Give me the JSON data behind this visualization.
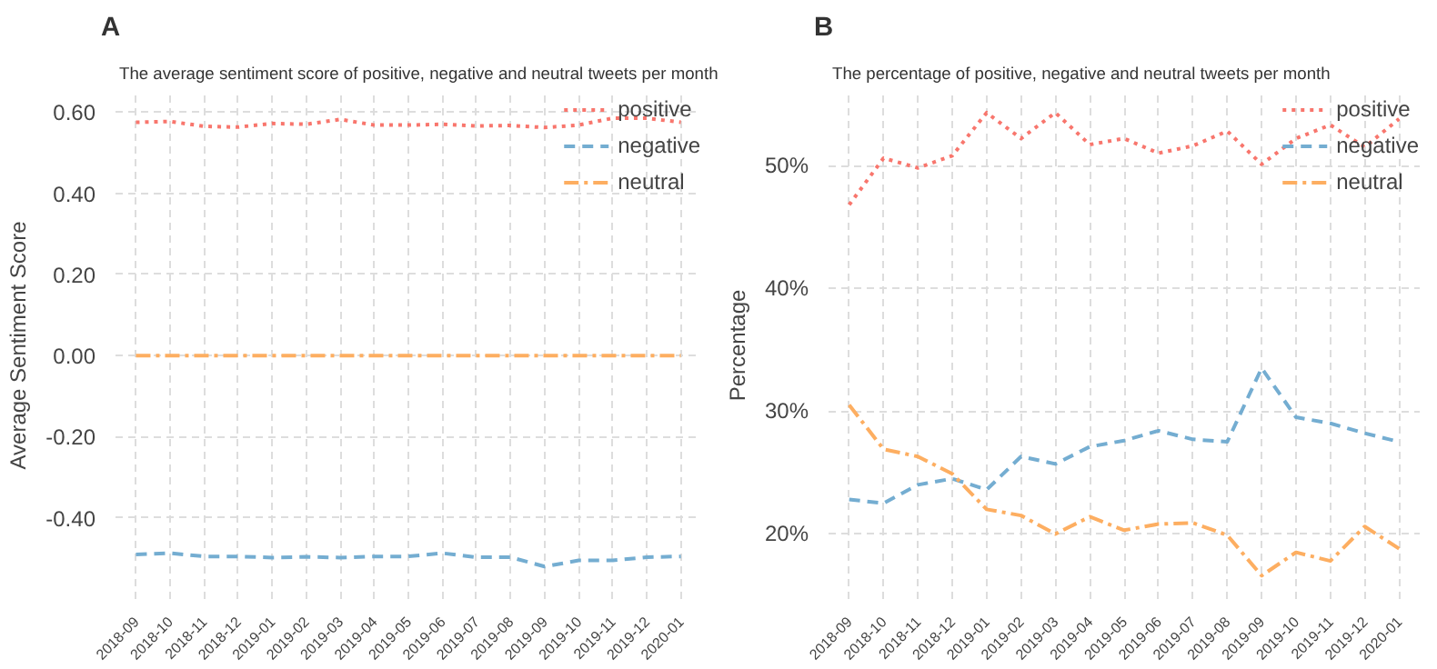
{
  "chart_data": [
    {
      "type": "line",
      "title": "The average sentiment score of positive, negative and neutral tweets per month",
      "ylabel": "Average Sentiment Score",
      "annotations": [
        "A"
      ],
      "categories": [
        "2018-09",
        "2018-10",
        "2018-11",
        "2018-12",
        "2019-01",
        "2019-02",
        "2019-03",
        "2019-04",
        "2019-05",
        "2019-06",
        "2019-07",
        "2019-08",
        "2019-09",
        "2019-10",
        "2019-11",
        "2019-12",
        "2020-01"
      ],
      "series": [
        {
          "name": "positive",
          "color": "#f8766d",
          "line_style": "dotted",
          "values": [
            0.575,
            0.577,
            0.565,
            0.563,
            0.572,
            0.57,
            0.582,
            0.568,
            0.568,
            0.57,
            0.566,
            0.567,
            0.562,
            0.568,
            0.585,
            0.585,
            0.575
          ]
        },
        {
          "name": "negative",
          "color": "#74add1",
          "line_style": "dashed",
          "values": [
            -0.49,
            -0.487,
            -0.495,
            -0.495,
            -0.498,
            -0.496,
            -0.498,
            -0.495,
            -0.495,
            -0.487,
            -0.497,
            -0.497,
            -0.52,
            -0.505,
            -0.505,
            -0.497,
            -0.495
          ]
        },
        {
          "name": "neutral",
          "color": "#fdae61",
          "line_style": "dashdot",
          "values": [
            0,
            0,
            0,
            0,
            0,
            0,
            0,
            0,
            0,
            0,
            0,
            0,
            0,
            0,
            0,
            0,
            0
          ]
        }
      ],
      "ylim": [
        -0.6,
        0.65
      ],
      "yticks": [
        {
          "value": -0.4,
          "label": "-0.40"
        },
        {
          "value": -0.2,
          "label": "-0.20"
        },
        {
          "value": 0,
          "label": "0.00"
        },
        {
          "value": 0.2,
          "label": "0.20"
        },
        {
          "value": 0.4,
          "label": "0.40"
        },
        {
          "value": 0.6,
          "label": "0.60"
        }
      ],
      "grid": true,
      "legend": "top right"
    },
    {
      "type": "line",
      "title": "The percentage of positive, negative and neutral tweets per month",
      "ylabel": "Percentage",
      "annotations": [
        "B"
      ],
      "categories": [
        "2018-09",
        "2018-10",
        "2018-11",
        "2018-12",
        "2019-01",
        "2019-02",
        "2019-03",
        "2019-04",
        "2019-05",
        "2019-06",
        "2019-07",
        "2019-08",
        "2019-09",
        "2019-10",
        "2019-11",
        "2019-12",
        "2020-01"
      ],
      "series": [
        {
          "name": "positive",
          "color": "#f8766d",
          "line_style": "dotted",
          "values": [
            46.8,
            50.6,
            49.8,
            50.8,
            54.3,
            52.2,
            54.3,
            51.7,
            52.2,
            51.0,
            51.6,
            52.8,
            50.1,
            52.2,
            53.3,
            51.5,
            53.8
          ]
        },
        {
          "name": "negative",
          "color": "#74add1",
          "line_style": "dashed",
          "values": [
            22.8,
            22.5,
            24.0,
            24.5,
            23.6,
            26.3,
            25.7,
            27.1,
            27.6,
            28.4,
            27.7,
            27.5,
            33.5,
            29.5,
            29.0,
            28.2,
            27.5
          ]
        },
        {
          "name": "neutral",
          "color": "#fdae61",
          "line_style": "dashdot",
          "values": [
            30.5,
            26.9,
            26.3,
            24.9,
            22.0,
            21.5,
            20.0,
            21.4,
            20.3,
            20.8,
            20.9,
            19.9,
            16.6,
            18.5,
            17.8,
            20.6,
            18.8
          ]
        }
      ],
      "ylim": [
        14.7,
        56
      ],
      "yticks": [
        {
          "value": 20,
          "label": "20%"
        },
        {
          "value": 30,
          "label": "30%"
        },
        {
          "value": 40,
          "label": "40%"
        },
        {
          "value": 50,
          "label": "50%"
        }
      ],
      "grid": true,
      "legend": "top right"
    }
  ]
}
